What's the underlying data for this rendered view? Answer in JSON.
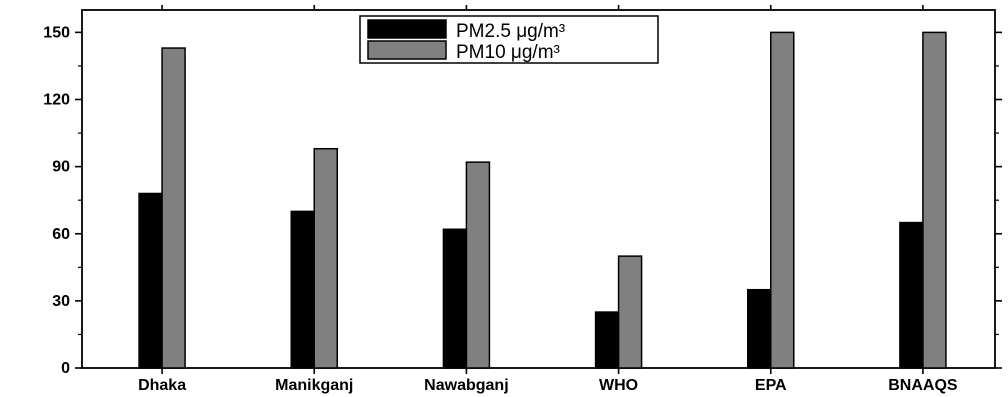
{
  "chart_data": {
    "type": "bar",
    "categories": [
      "Dhaka",
      "Manikganj",
      "Nawabganj",
      "WHO",
      "EPA",
      "BNAAQS"
    ],
    "series": [
      {
        "name": "PM2.5 μg/m³",
        "values": [
          78,
          70,
          62,
          25,
          35,
          65
        ],
        "color": "#000000"
      },
      {
        "name": "PM10 μg/m³",
        "values": [
          143,
          98,
          92,
          50,
          150,
          150
        ],
        "color": "#808080"
      }
    ],
    "yticks": [
      "0",
      "30",
      "60",
      "90",
      "120",
      "150"
    ],
    "ylim": [
      0,
      160
    ],
    "title": "",
    "xlabel": "",
    "ylabel": "",
    "grid": false,
    "legend_position": "top-center"
  }
}
